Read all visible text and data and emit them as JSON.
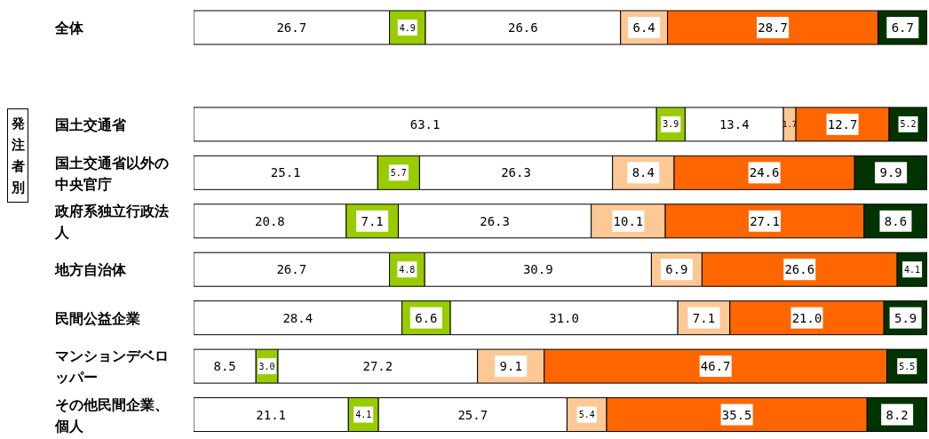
{
  "chart_data": {
    "type": "bar",
    "orientation": "horizontal",
    "stacked": true,
    "tick_labels": "y",
    "grid": false,
    "legend": false,
    "categories": [
      "全体",
      null,
      "国土交通省",
      "国土交通省以外の中央官庁",
      "政府系独立行政法人",
      "地方自治体",
      "民間公益企業",
      "マンションデベロッパー",
      "その他民間企業、個人"
    ],
    "xlim": [
      0,
      100
    ],
    "annotations": [
      "発注者別"
    ],
    "series": [
      {
        "color": "#ffffff",
        "values": [
          26.7,
          null,
          63.1,
          25.1,
          20.8,
          26.7,
          28.4,
          8.5,
          21.1
        ],
        "value_labels": [
          "26.7",
          null,
          "63.1",
          "25.1",
          "20.8",
          "26.7",
          "28.4",
          "8.5",
          "21.1"
        ]
      },
      {
        "color": "#99cc00",
        "values": [
          4.9,
          null,
          3.9,
          5.7,
          7.1,
          4.8,
          6.6,
          3.0,
          4.1
        ],
        "value_labels": [
          "4.9",
          null,
          "3.9",
          "5.7",
          "7.1",
          "4.8",
          "6.6",
          "3.0",
          "4.1"
        ]
      },
      {
        "color": "#ffffff",
        "values": [
          26.6,
          null,
          13.4,
          26.3,
          26.3,
          30.9,
          31.0,
          27.2,
          25.7
        ],
        "value_labels": [
          "26.6",
          null,
          "13.4",
          "26.3",
          "26.3",
          "30.9",
          "31.0",
          "27.2",
          "25.7"
        ]
      },
      {
        "color": "#fcc896",
        "values": [
          6.4,
          null,
          1.7,
          8.4,
          10.1,
          6.9,
          7.1,
          9.1,
          5.4
        ],
        "value_labels": [
          "6.4",
          null,
          "1.7",
          "8.4",
          "10.1",
          "6.9",
          "7.1",
          "9.1",
          "5.4"
        ]
      },
      {
        "color": "#ff6600",
        "values": [
          28.7,
          null,
          12.7,
          24.6,
          27.1,
          26.6,
          21.0,
          46.7,
          35.5
        ],
        "value_labels": [
          "28.7",
          null,
          "12.7",
          "24.6",
          "27.1",
          "26.6",
          "21.0",
          "46.7",
          "35.5"
        ]
      },
      {
        "color": "#003300",
        "values": [
          6.7,
          null,
          5.2,
          9.9,
          8.6,
          4.1,
          5.9,
          5.5,
          8.2
        ],
        "value_labels": [
          "6.7",
          null,
          "5.2",
          "9.9",
          "8.6",
          "4.1",
          "5.9",
          "5.5",
          "8.2"
        ]
      }
    ]
  }
}
